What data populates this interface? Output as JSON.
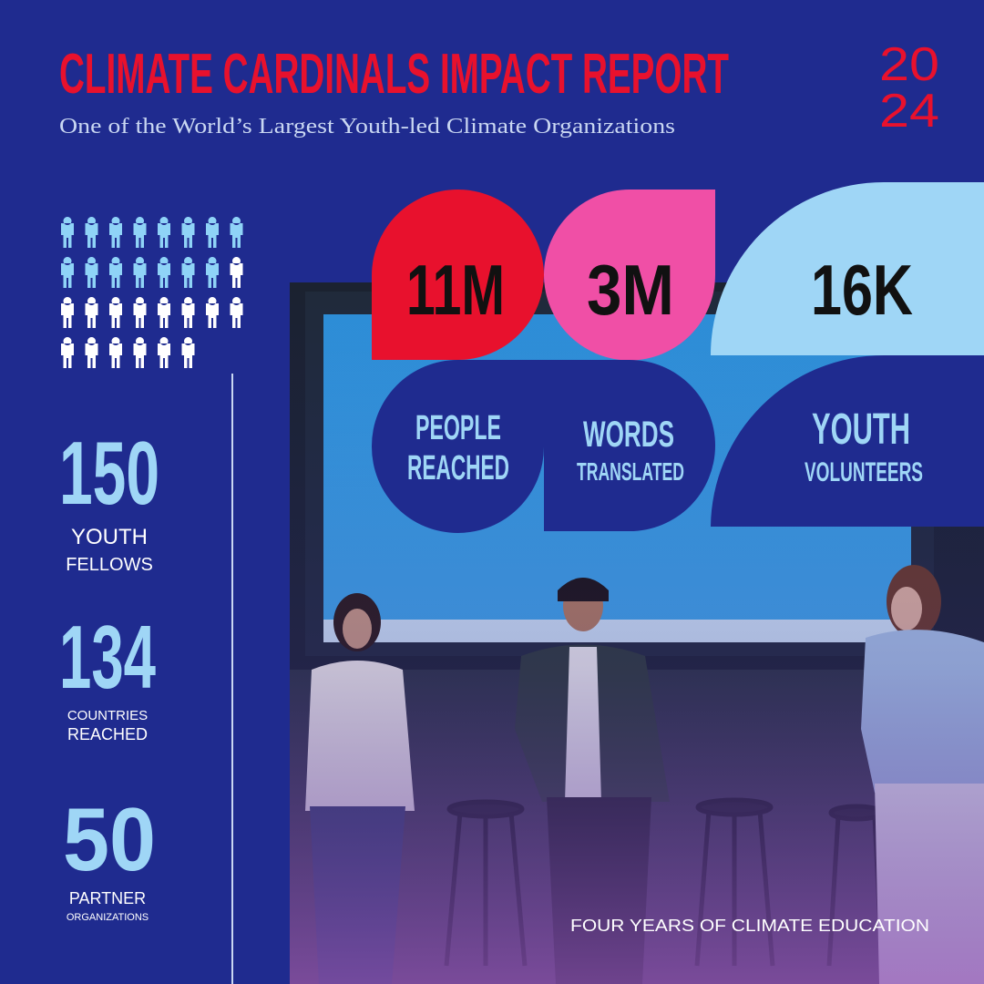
{
  "header": {
    "title": "CLIMATE CARDINALS IMPACT REPORT",
    "subtitle": "One of the World’s Largest Youth-led Climate Organizations",
    "year_lines": [
      "20",
      "24"
    ]
  },
  "highlights": [
    {
      "figure": "11M",
      "label_lines": [
        "PEOPLE",
        "REACHED"
      ]
    },
    {
      "figure": "3M",
      "label_lines": [
        "WORDS",
        "TRANSLATED"
      ]
    },
    {
      "figure": "16K",
      "label_lines": [
        "YOUTH",
        "VOLUNTEERS"
      ]
    }
  ],
  "side_stats": [
    {
      "figure": "150",
      "label_lines": [
        "YOUTH",
        "FELLOWS"
      ]
    },
    {
      "figure": "134",
      "label_lines": [
        "COUNTRIES",
        "REACHED"
      ]
    },
    {
      "figure": "50",
      "label_lines": [
        "PARTNER",
        "ORGANIZATIONS"
      ]
    }
  ],
  "footer": "FOUR YEARS OF CLIMATE EDUCATION"
}
